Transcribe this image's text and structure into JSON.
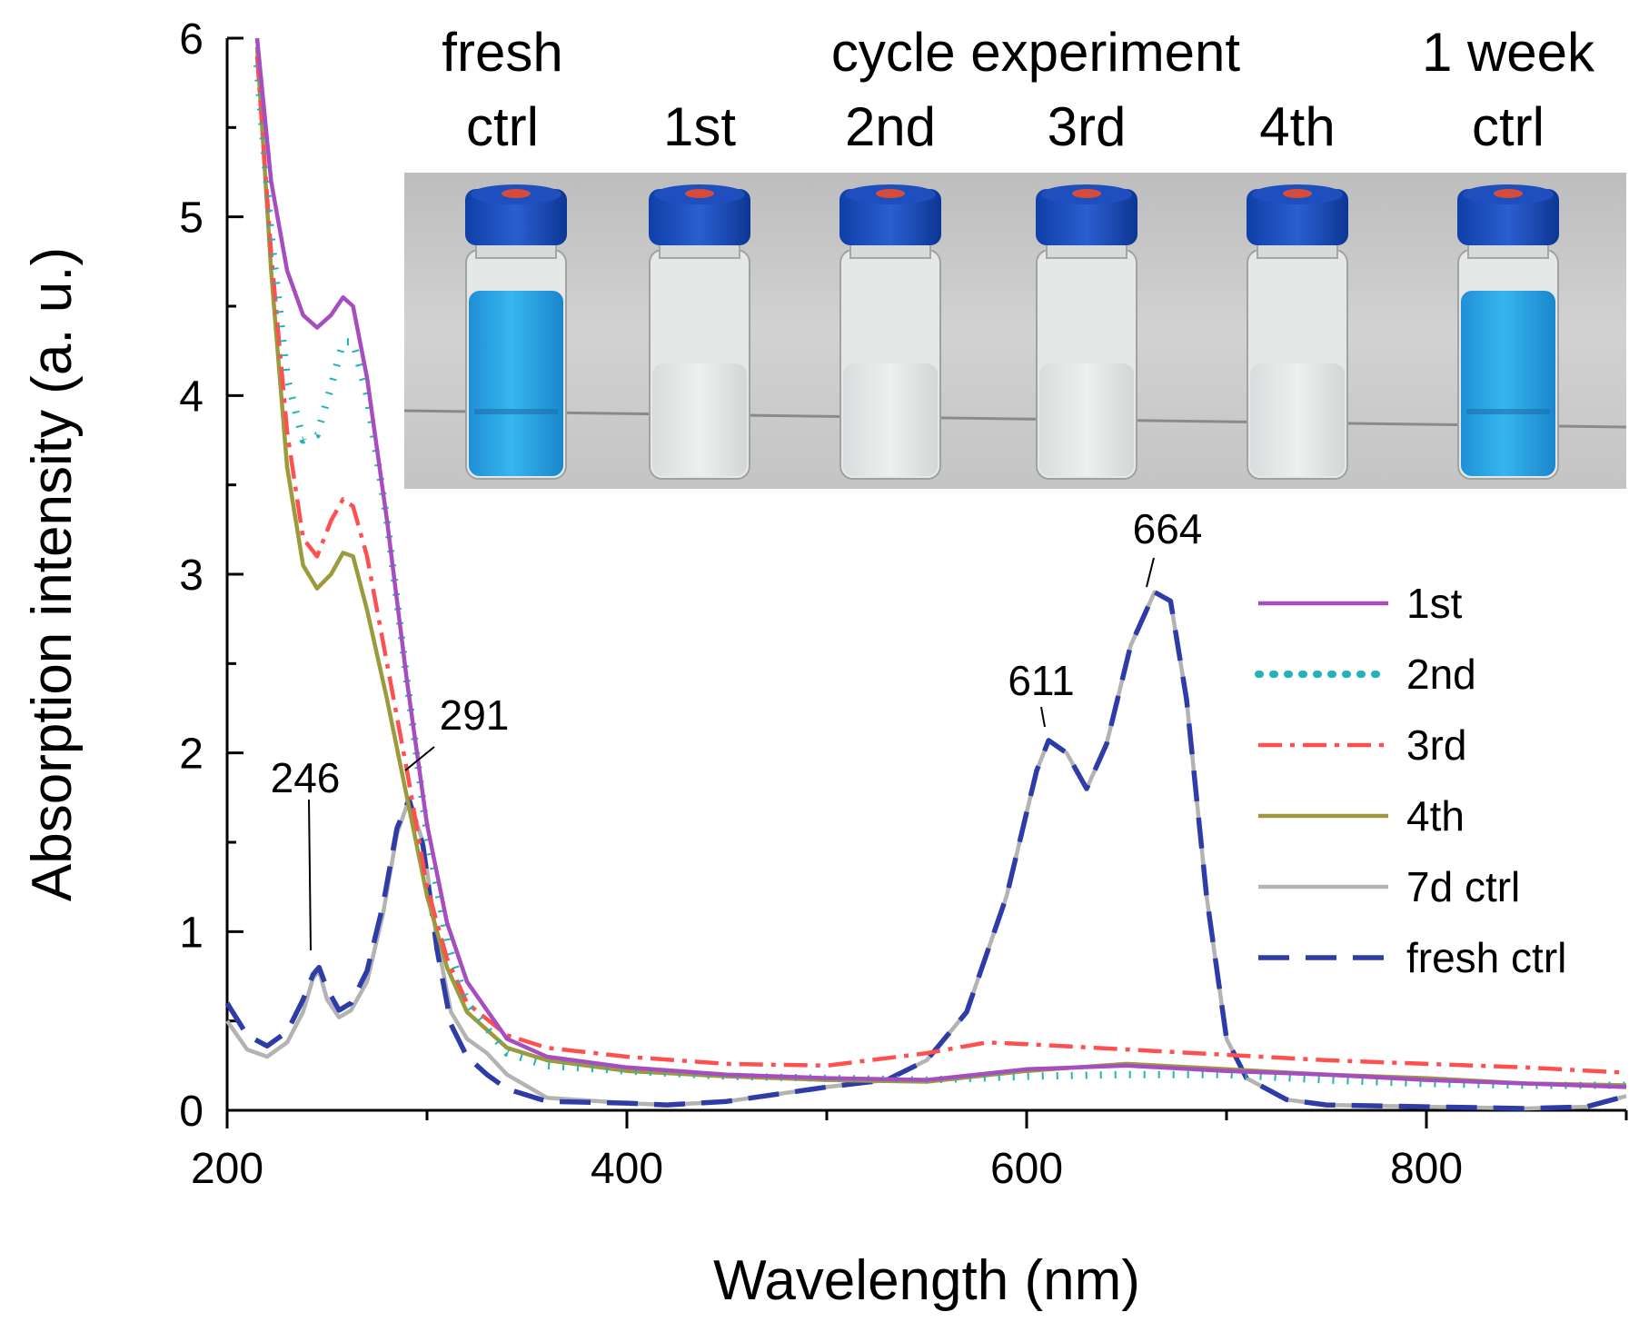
{
  "chart_data": {
    "type": "line",
    "title": "",
    "xlabel": "Wavelength (nm)",
    "ylabel": "Absorption intensity (a. u.)",
    "xlim": [
      200,
      900
    ],
    "ylim": [
      0,
      6
    ],
    "x_ticks": [
      200,
      400,
      600,
      800
    ],
    "x_ticks_minor": [
      300,
      500,
      700,
      900
    ],
    "y_ticks": [
      0,
      1,
      2,
      3,
      4,
      5,
      6
    ],
    "legend_position": "right",
    "series": [
      {
        "name": "1st",
        "color": "#a64dbf",
        "dash": "solid",
        "points": [
          [
            215,
            6.0
          ],
          [
            222,
            5.2
          ],
          [
            230,
            4.7
          ],
          [
            238,
            4.45
          ],
          [
            245,
            4.38
          ],
          [
            252,
            4.45
          ],
          [
            258,
            4.55
          ],
          [
            263,
            4.5
          ],
          [
            270,
            4.1
          ],
          [
            280,
            3.3
          ],
          [
            290,
            2.4
          ],
          [
            300,
            1.6
          ],
          [
            310,
            1.05
          ],
          [
            320,
            0.72
          ],
          [
            340,
            0.4
          ],
          [
            360,
            0.3
          ],
          [
            400,
            0.24
          ],
          [
            450,
            0.2
          ],
          [
            500,
            0.18
          ],
          [
            550,
            0.17
          ],
          [
            600,
            0.23
          ],
          [
            650,
            0.25
          ],
          [
            700,
            0.22
          ],
          [
            750,
            0.2
          ],
          [
            800,
            0.17
          ],
          [
            850,
            0.15
          ],
          [
            900,
            0.13
          ]
        ]
      },
      {
        "name": "2nd",
        "color": "#1fb5b5",
        "dash": "dot",
        "points": [
          [
            215,
            5.85
          ],
          [
            222,
            4.9
          ],
          [
            230,
            4.1
          ],
          [
            238,
            3.75
          ],
          [
            245,
            3.78
          ],
          [
            252,
            4.05
          ],
          [
            258,
            4.3
          ],
          [
            263,
            4.3
          ],
          [
            270,
            4.0
          ],
          [
            280,
            3.3
          ],
          [
            290,
            2.4
          ],
          [
            300,
            1.55
          ],
          [
            310,
            0.95
          ],
          [
            320,
            0.6
          ],
          [
            340,
            0.32
          ],
          [
            360,
            0.25
          ],
          [
            400,
            0.22
          ],
          [
            450,
            0.19
          ],
          [
            500,
            0.18
          ],
          [
            550,
            0.17
          ],
          [
            600,
            0.19
          ],
          [
            650,
            0.2
          ],
          [
            700,
            0.2
          ],
          [
            750,
            0.17
          ],
          [
            800,
            0.15
          ],
          [
            850,
            0.14
          ],
          [
            900,
            0.14
          ]
        ]
      },
      {
        "name": "3rd",
        "color": "#ff4f4f",
        "dash": "dashdot",
        "points": [
          [
            215,
            5.9
          ],
          [
            222,
            4.8
          ],
          [
            230,
            3.8
          ],
          [
            238,
            3.2
          ],
          [
            245,
            3.1
          ],
          [
            252,
            3.3
          ],
          [
            258,
            3.42
          ],
          [
            263,
            3.38
          ],
          [
            270,
            3.1
          ],
          [
            280,
            2.5
          ],
          [
            290,
            1.9
          ],
          [
            300,
            1.25
          ],
          [
            310,
            0.85
          ],
          [
            320,
            0.6
          ],
          [
            340,
            0.42
          ],
          [
            360,
            0.35
          ],
          [
            400,
            0.3
          ],
          [
            450,
            0.26
          ],
          [
            500,
            0.25
          ],
          [
            550,
            0.32
          ],
          [
            580,
            0.38
          ],
          [
            600,
            0.37
          ],
          [
            650,
            0.34
          ],
          [
            700,
            0.31
          ],
          [
            750,
            0.28
          ],
          [
            800,
            0.26
          ],
          [
            850,
            0.24
          ],
          [
            900,
            0.21
          ]
        ]
      },
      {
        "name": "4th",
        "color": "#9b9b3d",
        "dash": "solid",
        "points": [
          [
            215,
            5.95
          ],
          [
            222,
            4.7
          ],
          [
            230,
            3.6
          ],
          [
            238,
            3.05
          ],
          [
            245,
            2.92
          ],
          [
            252,
            3.0
          ],
          [
            258,
            3.12
          ],
          [
            263,
            3.1
          ],
          [
            270,
            2.8
          ],
          [
            280,
            2.3
          ],
          [
            290,
            1.75
          ],
          [
            300,
            1.2
          ],
          [
            310,
            0.8
          ],
          [
            320,
            0.55
          ],
          [
            340,
            0.35
          ],
          [
            360,
            0.28
          ],
          [
            400,
            0.22
          ],
          [
            450,
            0.19
          ],
          [
            500,
            0.17
          ],
          [
            550,
            0.16
          ],
          [
            600,
            0.22
          ],
          [
            650,
            0.26
          ],
          [
            700,
            0.23
          ],
          [
            750,
            0.2
          ],
          [
            800,
            0.18
          ],
          [
            850,
            0.15
          ],
          [
            900,
            0.14
          ]
        ]
      },
      {
        "name": "7d ctrl",
        "color": "#b3b3b3",
        "dash": "solid",
        "points": [
          [
            200,
            0.5
          ],
          [
            210,
            0.34
          ],
          [
            220,
            0.3
          ],
          [
            230,
            0.38
          ],
          [
            238,
            0.55
          ],
          [
            243,
            0.74
          ],
          [
            246,
            0.78
          ],
          [
            250,
            0.62
          ],
          [
            256,
            0.52
          ],
          [
            262,
            0.56
          ],
          [
            270,
            0.72
          ],
          [
            278,
            1.1
          ],
          [
            285,
            1.55
          ],
          [
            291,
            1.74
          ],
          [
            298,
            1.5
          ],
          [
            305,
            0.95
          ],
          [
            312,
            0.55
          ],
          [
            320,
            0.4
          ],
          [
            330,
            0.32
          ],
          [
            340,
            0.2
          ],
          [
            360,
            0.07
          ],
          [
            400,
            0.04
          ],
          [
            420,
            0.03
          ],
          [
            450,
            0.05
          ],
          [
            500,
            0.13
          ],
          [
            530,
            0.17
          ],
          [
            550,
            0.28
          ],
          [
            570,
            0.55
          ],
          [
            590,
            1.2
          ],
          [
            605,
            1.9
          ],
          [
            611,
            2.07
          ],
          [
            620,
            2.0
          ],
          [
            630,
            1.8
          ],
          [
            640,
            2.05
          ],
          [
            652,
            2.6
          ],
          [
            664,
            2.9
          ],
          [
            672,
            2.85
          ],
          [
            680,
            2.3
          ],
          [
            690,
            1.2
          ],
          [
            700,
            0.4
          ],
          [
            710,
            0.18
          ],
          [
            730,
            0.06
          ],
          [
            750,
            0.03
          ],
          [
            800,
            0.02
          ],
          [
            850,
            0.01
          ],
          [
            880,
            0.02
          ],
          [
            900,
            0.08
          ]
        ]
      },
      {
        "name": "fresh ctrl",
        "color": "#2e3ca8",
        "dash": "dash",
        "points": [
          [
            200,
            0.6
          ],
          [
            210,
            0.42
          ],
          [
            220,
            0.36
          ],
          [
            230,
            0.44
          ],
          [
            238,
            0.62
          ],
          [
            243,
            0.76
          ],
          [
            246,
            0.8
          ],
          [
            250,
            0.68
          ],
          [
            256,
            0.56
          ],
          [
            262,
            0.6
          ],
          [
            270,
            0.78
          ],
          [
            278,
            1.15
          ],
          [
            285,
            1.58
          ],
          [
            291,
            1.74
          ],
          [
            298,
            1.48
          ],
          [
            305,
            0.9
          ],
          [
            312,
            0.48
          ],
          [
            320,
            0.3
          ],
          [
            330,
            0.2
          ],
          [
            340,
            0.12
          ],
          [
            360,
            0.05
          ],
          [
            400,
            0.04
          ],
          [
            420,
            0.03
          ],
          [
            450,
            0.05
          ],
          [
            500,
            0.13
          ],
          [
            530,
            0.17
          ],
          [
            550,
            0.28
          ],
          [
            570,
            0.55
          ],
          [
            590,
            1.2
          ],
          [
            605,
            1.9
          ],
          [
            611,
            2.07
          ],
          [
            620,
            2.0
          ],
          [
            630,
            1.8
          ],
          [
            640,
            2.05
          ],
          [
            652,
            2.6
          ],
          [
            664,
            2.9
          ],
          [
            672,
            2.85
          ],
          [
            680,
            2.3
          ],
          [
            690,
            1.2
          ],
          [
            700,
            0.4
          ],
          [
            710,
            0.18
          ],
          [
            730,
            0.06
          ],
          [
            750,
            0.03
          ],
          [
            800,
            0.02
          ],
          [
            850,
            0.01
          ],
          [
            880,
            0.02
          ],
          [
            900,
            0.08
          ]
        ]
      }
    ],
    "annotations": [
      {
        "text": "246",
        "x": 246,
        "y": 0.78
      },
      {
        "text": "291",
        "x": 291,
        "y": 1.74
      },
      {
        "text": "611",
        "x": 611,
        "y": 2.07
      },
      {
        "text": "664",
        "x": 664,
        "y": 2.9
      }
    ]
  },
  "inset": {
    "header": "cycle experiment",
    "columns": [
      {
        "label_top": "fresh",
        "label_bottom": "ctrl",
        "color": "blue"
      },
      {
        "label_top": "",
        "label_bottom": "1st",
        "color": "clear"
      },
      {
        "label_top": "",
        "label_bottom": "2nd",
        "color": "clear"
      },
      {
        "label_top": "",
        "label_bottom": "3rd",
        "color": "clear"
      },
      {
        "label_top": "",
        "label_bottom": "4th",
        "color": "clear"
      },
      {
        "label_top": "1 week",
        "label_bottom": "ctrl",
        "color": "blue"
      }
    ]
  }
}
